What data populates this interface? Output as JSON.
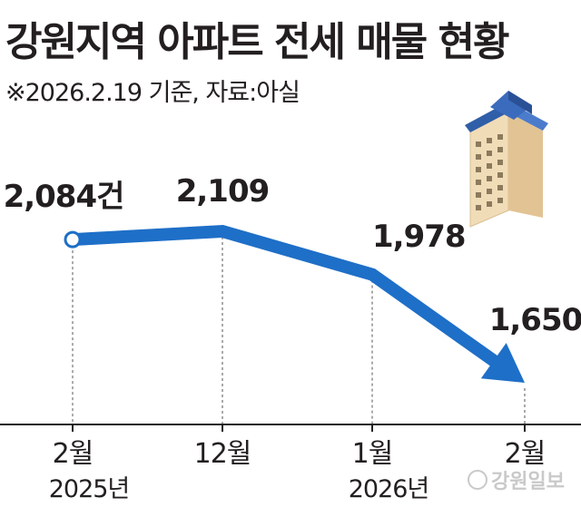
{
  "title": "강원지역 아파트 전세 매물 현황",
  "subtitle": "※2026.2.19 기준, 자료:아실",
  "watermark": "강원일보",
  "colors": {
    "line": "#1e6fc7",
    "axis": "#231f20",
    "guide": "#555555",
    "text": "#231f20"
  },
  "chart_data": {
    "type": "line",
    "categories": [
      "2월",
      "12월",
      "1월",
      "2월"
    ],
    "year_labels": [
      "2025년",
      "",
      "2026년",
      ""
    ],
    "values": [
      2084,
      2109,
      1978,
      1650
    ],
    "value_labels": [
      "2,084건",
      "2,109",
      "1,978",
      "1,650"
    ],
    "unit": "건",
    "start_marker": "open-circle",
    "end_marker": "arrow"
  }
}
